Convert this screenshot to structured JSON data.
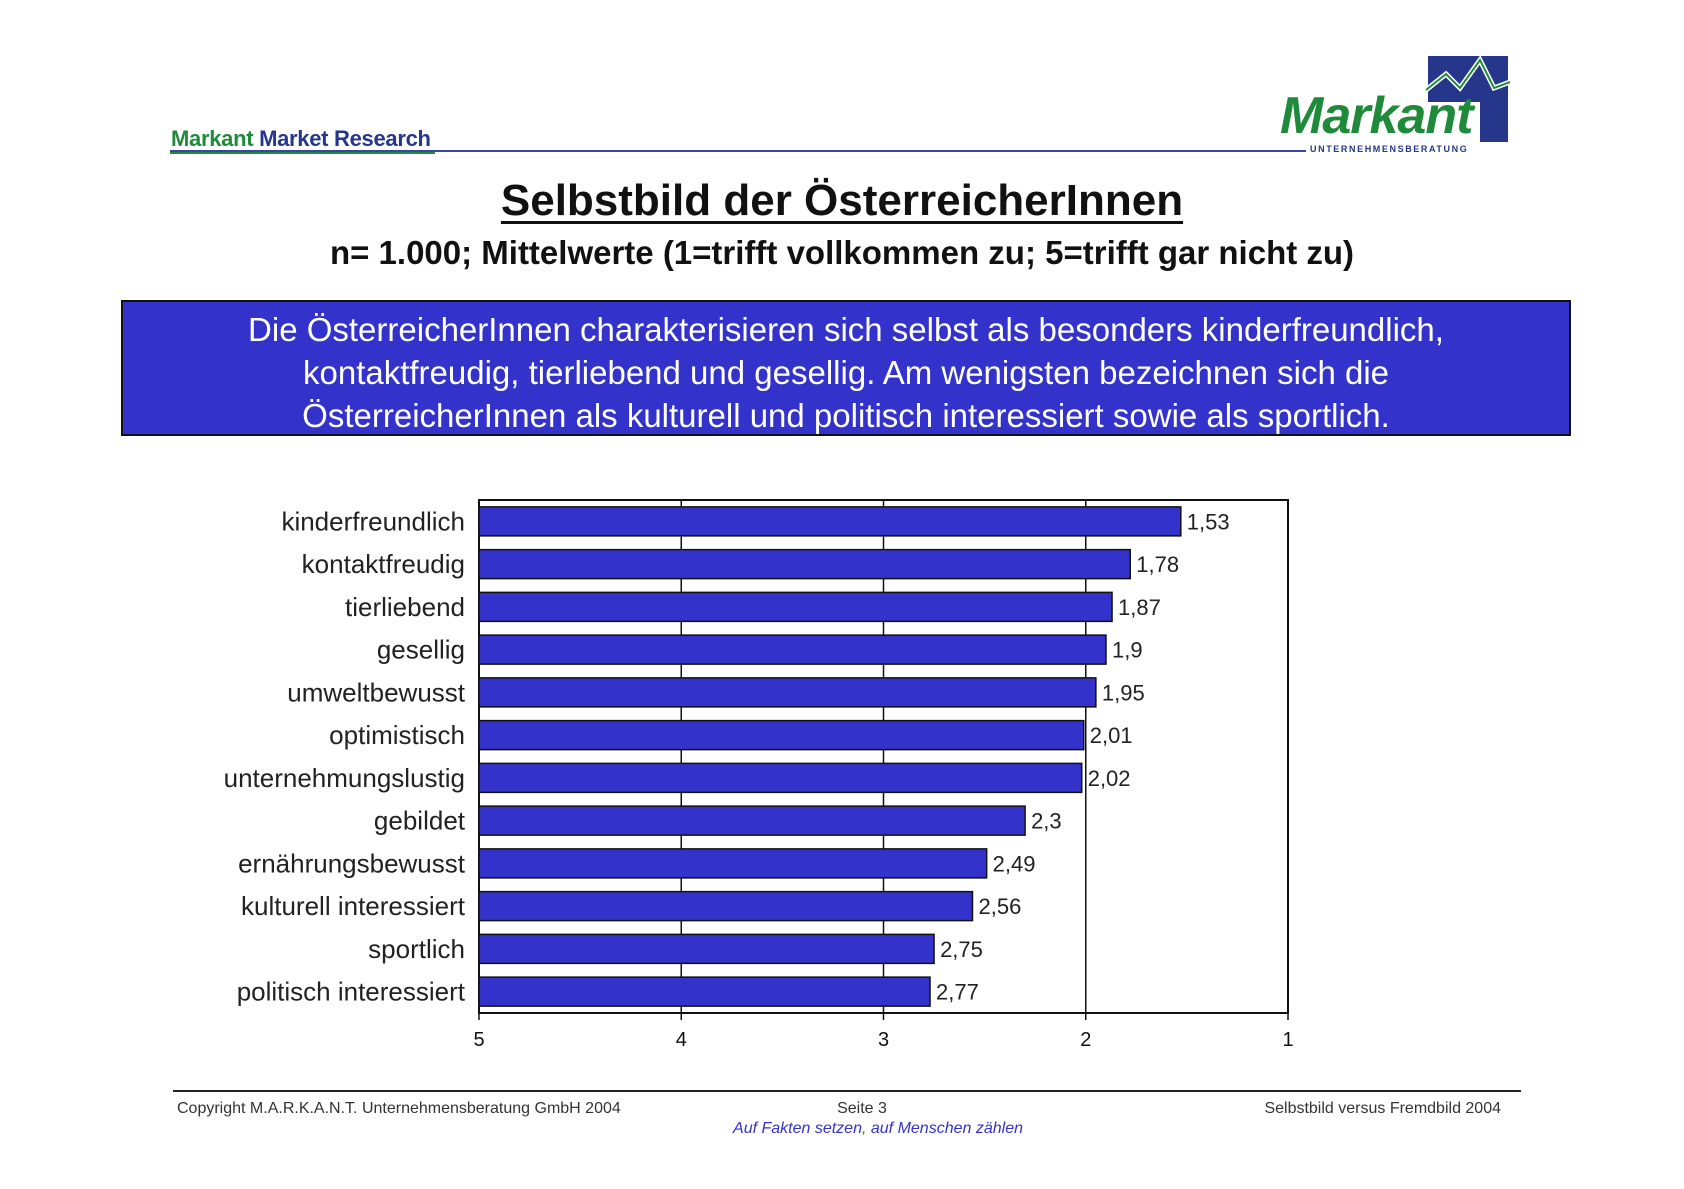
{
  "header": {
    "brand_green": "Markant",
    "brand_blue": "Market Research",
    "logo_word": "Markant",
    "logo_sub": "UNTERNEHMENSBERATUNG"
  },
  "title": "Selbstbild der ÖsterreicherInnen",
  "subtitle": "n= 1.000; Mittelwerte (1=trifft vollkommen zu; 5=trifft gar nicht zu)",
  "summary_lines": [
    "Die ÖsterreicherInnen charakterisieren sich selbst als besonders kinderfreundlich,",
    "kontaktfreudig, tierliebend und gesellig. Am wenigsten bezeichnen sich die",
    "ÖsterreicherInnen als kulturell und politisch interessiert sowie als sportlich."
  ],
  "colors": {
    "bar": "#3333cc",
    "summary_bg": "#3333cc",
    "brand_green": "#1e8a3a",
    "brand_blue": "#26368a"
  },
  "chart_data": {
    "type": "bar",
    "orientation": "horizontal",
    "categories": [
      "kinderfreundlich",
      "kontaktfreudig",
      "tierliebend",
      "gesellig",
      "umweltbewusst",
      "optimistisch",
      "unternehmungslustig",
      "gebildet",
      "ernährungsbewusst",
      "kulturell interessiert",
      "sportlich",
      "politisch interessiert"
    ],
    "values": [
      1.53,
      1.78,
      1.87,
      1.9,
      1.95,
      2.01,
      2.02,
      2.3,
      2.49,
      2.56,
      2.75,
      2.77
    ],
    "value_labels": [
      "1,53",
      "1,78",
      "1,87",
      "1,9",
      "1,95",
      "2,01",
      "2,02",
      "2,3",
      "2,49",
      "2,56",
      "2,75",
      "2,77"
    ],
    "x_ticks": [
      5,
      4,
      3,
      2,
      1
    ],
    "xlim": [
      5,
      1
    ],
    "x_reversed": true,
    "grid": "vertical",
    "legend": "none"
  },
  "footer": {
    "copyright": "Copyright  M.A.R.K.A.N.T. Unternehmensberatung GmbH 2004",
    "page": "Seite  3",
    "right": "Selbstbild versus Fremdbild  2004",
    "slogan_a": "Auf Fakten setzen",
    "slogan_sep": ",",
    "slogan_b": " auf Menschen zählen"
  }
}
